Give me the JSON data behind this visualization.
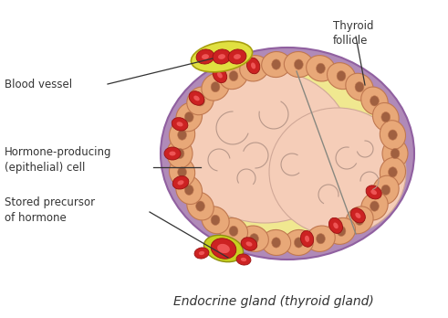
{
  "bg_color": "#ffffff",
  "labels": {
    "blood_vessel": "Blood vessel",
    "thyroid_follicle": "Thyroid\nfollicle",
    "hormone_producing": "Hormone-producing\n(epithelial) cell",
    "stored_precursor": "Stored precursor\nof hormone",
    "endocrine_gland": "Endocrine gland (thyroid gland)"
  },
  "colors": {
    "purple_border": "#b08ab8",
    "yellow_ring": "#f0e890",
    "cell_fill": "#e8a878",
    "cell_edge": "#c07850",
    "cell_nucleus": "#a06040",
    "follicle_pink": "#f5cdb8",
    "follicle_line": "#c0a090",
    "blood_vessel_yellow": "#e0e040",
    "blood_vessel_edge": "#a8a010",
    "red_cell": "#cc2222",
    "red_cell_light": "#ee5555",
    "stored_yellow": "#c8d020",
    "stored_edge": "#909010",
    "annotation": "#333333",
    "label_fs": 8.5,
    "endocrine_fs": 10
  }
}
